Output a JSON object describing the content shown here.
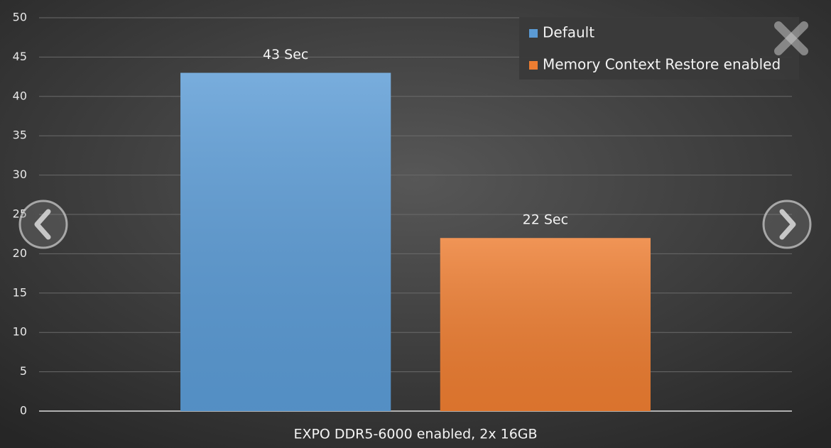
{
  "chart_data": {
    "type": "bar",
    "categories": [
      "EXPO DDR5-6000 enabled, 2x 16GB"
    ],
    "series": [
      {
        "name": "Default",
        "color": "#5b9bd5",
        "values": [
          43
        ],
        "value_labels": [
          "43 Sec"
        ]
      },
      {
        "name": "Memory Context Restore enabled",
        "color": "#ed7d31",
        "values": [
          22
        ],
        "value_labels": [
          "22 Sec"
        ]
      }
    ],
    "ylim": [
      0,
      50
    ],
    "yticks": [
      0,
      5,
      10,
      15,
      20,
      25,
      30,
      35,
      40,
      45,
      50
    ],
    "grid": true,
    "legend": "top-right"
  }
}
